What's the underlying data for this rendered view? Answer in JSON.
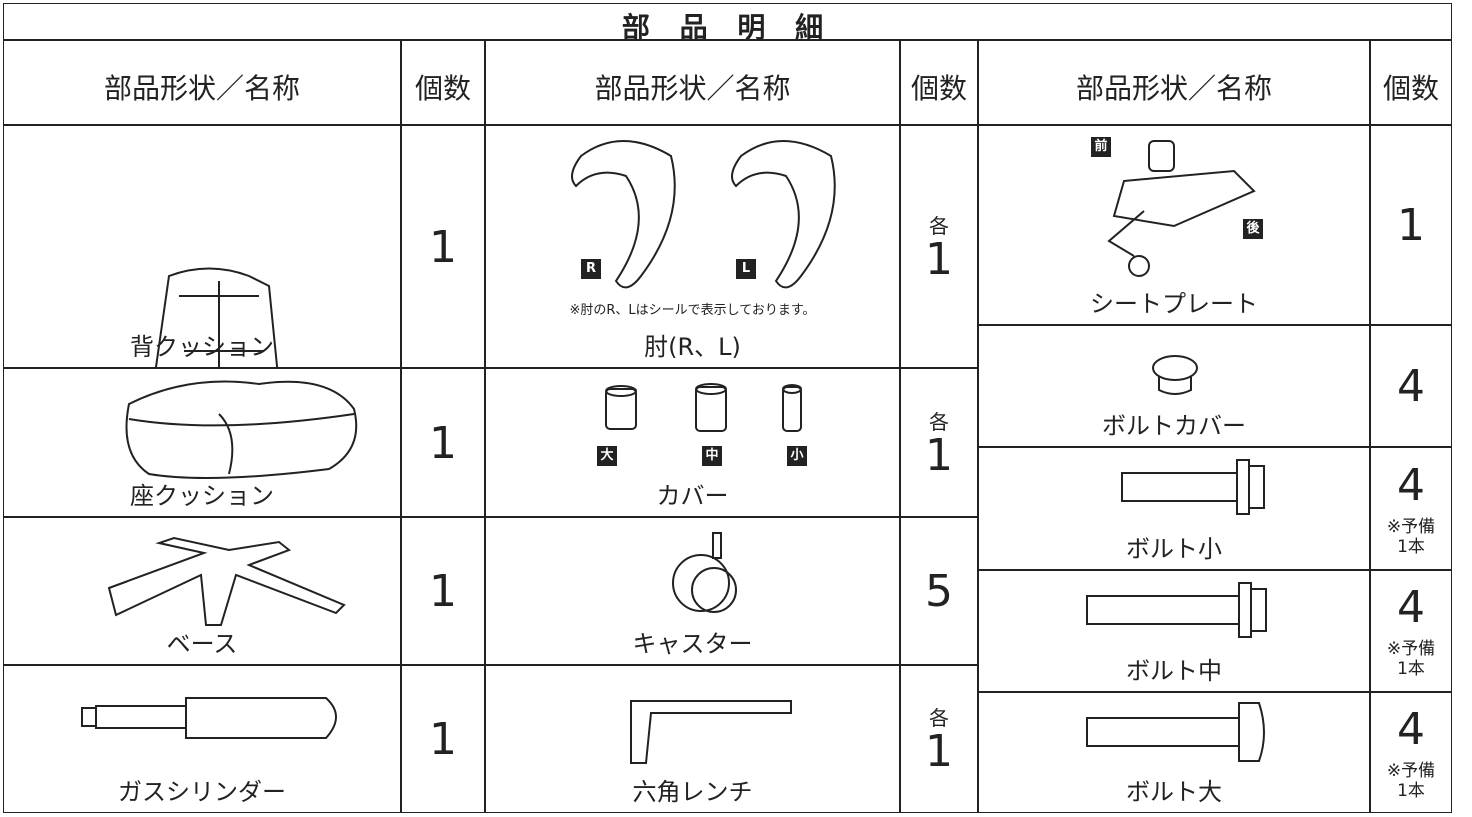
{
  "title": "部 品 明 細",
  "groups": [
    {
      "header": {
        "name": "部品形状／名称",
        "count": "個数"
      },
      "parts": [
        {
          "name": "背クッション",
          "count": 1
        },
        {
          "name": "座クッション",
          "count": 1
        },
        {
          "name": "ベース",
          "count": 1
        },
        {
          "name": "ガスシリンダー",
          "count": 1
        }
      ]
    },
    {
      "header": {
        "name": "部品形状／名称",
        "count": "個数"
      },
      "parts": [
        {
          "name": "肘(R、L)",
          "count_prefix": "各",
          "count": 1,
          "labels": [
            "R",
            "L"
          ],
          "note": "※肘のR、Lはシールで表示しております。"
        },
        {
          "name": "カバー",
          "count_prefix": "各",
          "count": 1,
          "labels": [
            "大",
            "中",
            "小"
          ]
        },
        {
          "name": "キャスター",
          "count": 5
        },
        {
          "name": "六角レンチ",
          "count_prefix": "各",
          "count": 1
        }
      ]
    },
    {
      "header": {
        "name": "部品形状／名称",
        "count": "個数"
      },
      "parts": [
        {
          "name": "シートプレート",
          "count": 1,
          "labels": [
            "前",
            "後"
          ]
        },
        {
          "name": "ボルトカバー",
          "count": 4
        },
        {
          "name": "ボルト小",
          "count": 4,
          "spare": [
            "※予備",
            "1本"
          ]
        },
        {
          "name": "ボルト中",
          "count": 4,
          "spare": [
            "※予備",
            "1本"
          ]
        },
        {
          "name": "ボルト大",
          "count": 4,
          "spare": [
            "※予備",
            "1本"
          ]
        }
      ]
    }
  ]
}
